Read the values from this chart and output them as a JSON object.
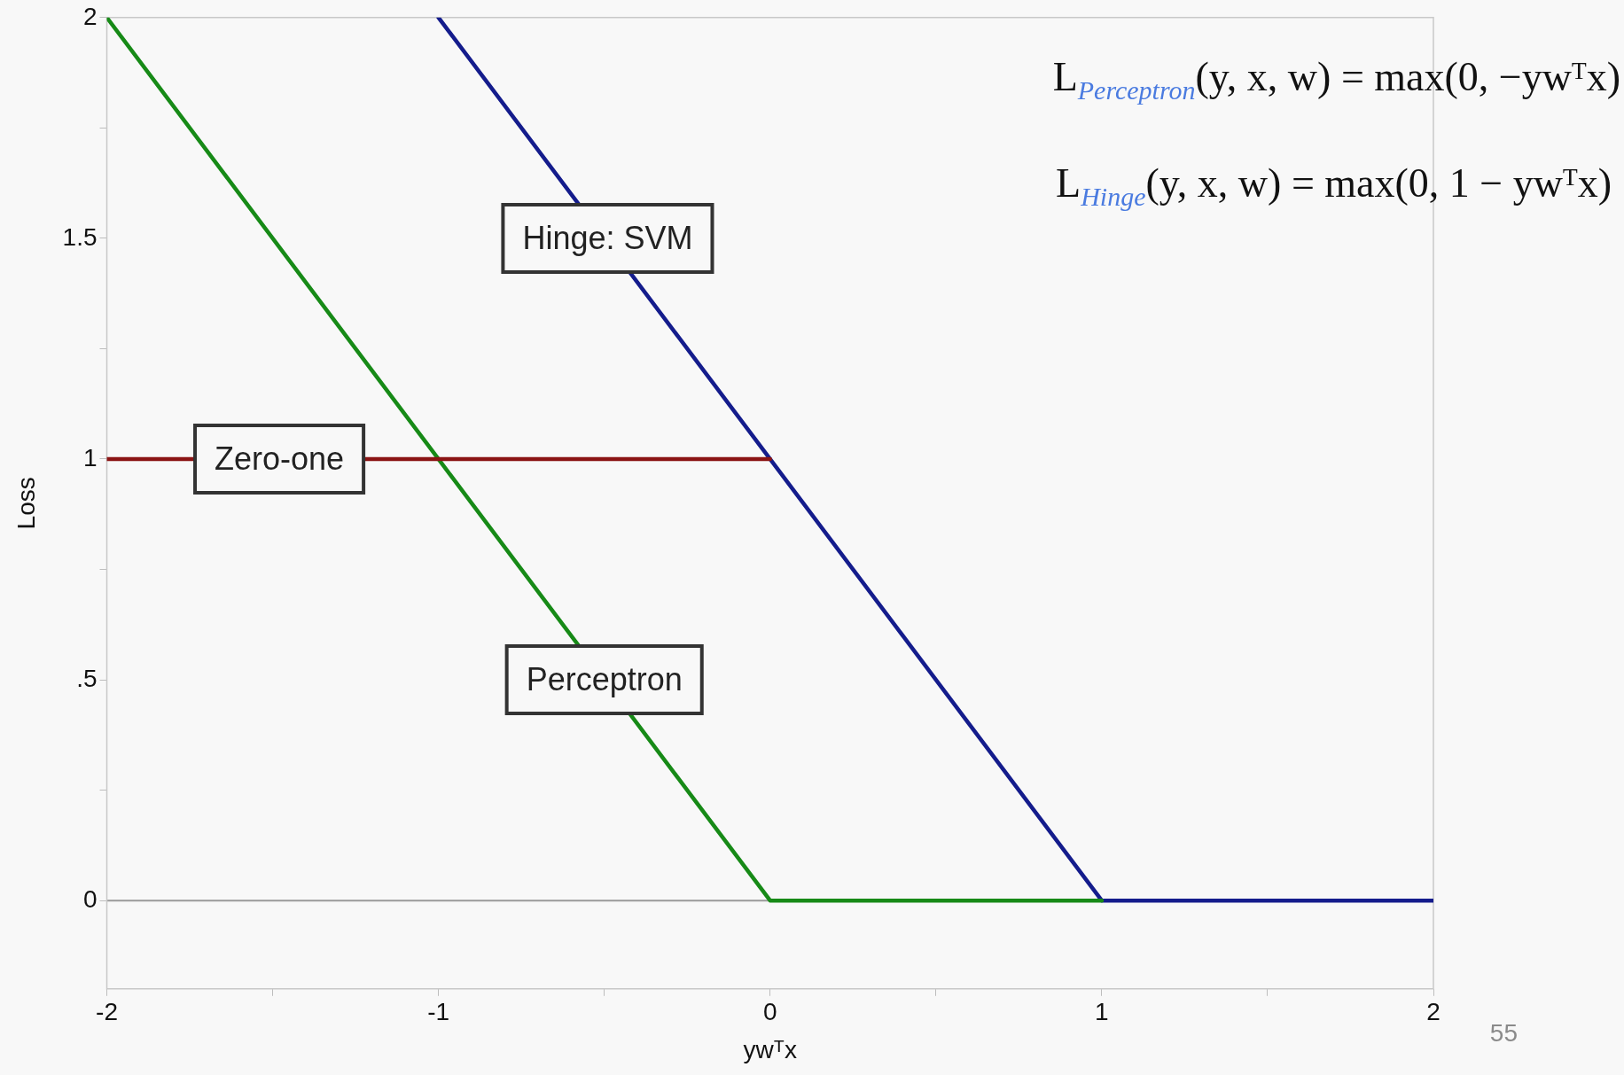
{
  "chart_data": {
    "type": "line",
    "xlabel": "ywᵀx",
    "ylabel": "Loss",
    "xlim": [
      -2,
      2
    ],
    "xticks": [
      -2,
      {
        "value": -1.5,
        "label": null
      },
      -1,
      {
        "value": -0.5,
        "label": null
      },
      0,
      {
        "value": 0.5,
        "label": null
      },
      1,
      {
        "value": 1.5,
        "label": null
      },
      2
    ],
    "ylim": [
      -0.2,
      2
    ],
    "yticks": [
      {
        "value": 0,
        "label": "0"
      },
      {
        "value": 0.25,
        "label": null
      },
      {
        "value": 0.5,
        "label": ".5"
      },
      {
        "value": 0.75,
        "label": null
      },
      1,
      {
        "value": 1.25,
        "label": null
      },
      1.5,
      {
        "value": 1.75,
        "label": null
      },
      2
    ],
    "grid": false,
    "legend": false,
    "marker": "none",
    "line_style": "solid",
    "ref_lines": [
      {
        "axis": "y",
        "value": 0,
        "color": "#9a9a9a"
      }
    ],
    "series": [
      {
        "color": "#8b1414",
        "x": [
          -2,
          0
        ],
        "values": [
          1,
          1
        ]
      },
      {
        "color": "#178a17",
        "x": [
          -2,
          0,
          1
        ],
        "values": [
          2,
          0,
          0
        ]
      },
      {
        "color": "#141c8c",
        "x": [
          -1,
          1,
          2
        ],
        "values": [
          2,
          0,
          0
        ]
      }
    ],
    "annotations": [
      "L$_{Perceptron}$(y, x, w) = max(0, −ywᵀx)",
      "L$_{Hinge}$(y, x, w) = max(0, 1 − ywᵀx)",
      "55",
      {
        "text": "Hinge: SVM",
        "x": -0.49,
        "y": 1.5
      },
      {
        "text": "Zero-one",
        "x": -1.48,
        "y": 1
      },
      {
        "text": "Perceptron",
        "x": -0.5,
        "y": 0.5
      }
    ]
  }
}
